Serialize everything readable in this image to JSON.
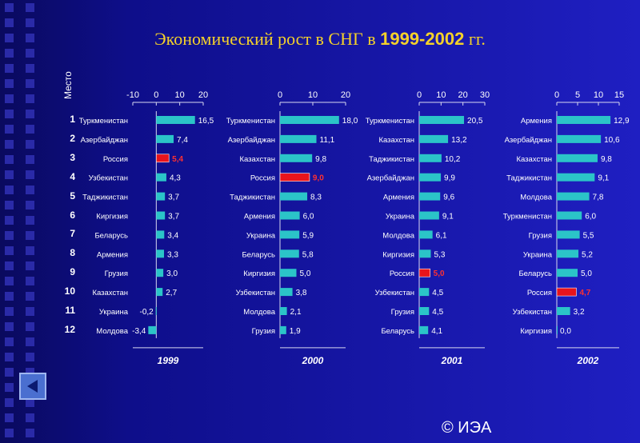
{
  "slide": {
    "title_prefix": "Экономический рост в СНГ в ",
    "title_years": "1999-2002",
    "title_suffix": " гг.",
    "rank_label": "Место",
    "copyright": "© ИЭА",
    "back_icon": "back-arrow-icon"
  },
  "ranks": [
    "1",
    "2",
    "3",
    "4",
    "5",
    "6",
    "7",
    "8",
    "9",
    "10",
    "11",
    "12"
  ],
  "colors": {
    "bar": "#2bc4c8",
    "highlight": "#e8141c",
    "label": "#ffffff",
    "highlight_label": "#ff3030",
    "title": "#f4d12a"
  },
  "chart_data": [
    {
      "type": "bar",
      "orientation": "horizontal",
      "title": "1999",
      "xlim": [
        -10,
        20
      ],
      "ticks": [
        "-10",
        "0",
        "10",
        "20"
      ],
      "categories": [
        "Туркменистан",
        "Азербайджан",
        "Россия",
        "Узбекистан",
        "Таджикистан",
        "Киргизия",
        "Беларусь",
        "Армения",
        "Грузия",
        "Казахстан",
        "Украина",
        "Молдова"
      ],
      "values": [
        16.5,
        7.4,
        5.4,
        4.3,
        3.7,
        3.7,
        3.4,
        3.3,
        3.0,
        2.7,
        -0.2,
        -3.4
      ],
      "value_labels": [
        "16,5",
        "7,4",
        "5,4",
        "4,3",
        "3,7",
        "3,7",
        "3,4",
        "3,3",
        "3,0",
        "2,7",
        "-0,2",
        "-3,4"
      ],
      "highlight": "Россия"
    },
    {
      "type": "bar",
      "orientation": "horizontal",
      "title": "2000",
      "xlim": [
        0,
        20
      ],
      "ticks": [
        "0",
        "10",
        "20"
      ],
      "categories": [
        "Туркменистан",
        "Азербайджан",
        "Казахстан",
        "Россия",
        "Таджикистан",
        "Армения",
        "Украина",
        "Беларусь",
        "Киргизия",
        "Узбекистан",
        "Молдова",
        "Грузия"
      ],
      "values": [
        18.0,
        11.1,
        9.8,
        9.0,
        8.3,
        6.0,
        5.9,
        5.8,
        5.0,
        3.8,
        2.1,
        1.9
      ],
      "value_labels": [
        "18,0",
        "11,1",
        "9,8",
        "9,0",
        "8,3",
        "6,0",
        "5,9",
        "5,8",
        "5,0",
        "3,8",
        "2,1",
        "1,9"
      ],
      "highlight": "Россия"
    },
    {
      "type": "bar",
      "orientation": "horizontal",
      "title": "2001",
      "xlim": [
        0,
        30
      ],
      "ticks": [
        "0",
        "10",
        "20",
        "30"
      ],
      "categories": [
        "Туркменистан",
        "Казахстан",
        "Таджикистан",
        "Азербайджан",
        "Армения",
        "Украина",
        "Молдова",
        "Киргизия",
        "Россия",
        "Узбекистан",
        "Грузия",
        "Беларусь"
      ],
      "values": [
        20.5,
        13.2,
        10.2,
        9.9,
        9.6,
        9.1,
        6.1,
        5.3,
        5.0,
        4.5,
        4.5,
        4.1
      ],
      "value_labels": [
        "20,5",
        "13,2",
        "10,2",
        "9,9",
        "9,6",
        "9,1",
        "6,1",
        "5,3",
        "5,0",
        "4,5",
        "4,5",
        "4,1"
      ],
      "highlight": "Россия"
    },
    {
      "type": "bar",
      "orientation": "horizontal",
      "title": "2002",
      "xlim": [
        0,
        15
      ],
      "ticks": [
        "0",
        "5",
        "10",
        "15"
      ],
      "categories": [
        "Армения",
        "Азербайджан",
        "Казахстан",
        "Таджикистан",
        "Молдова",
        "Туркменистан",
        "Грузия",
        "Украина",
        "Беларусь",
        "Россия",
        "Узбекистан",
        "Киргизия"
      ],
      "values": [
        12.9,
        10.6,
        9.8,
        9.1,
        7.8,
        6.0,
        5.5,
        5.2,
        5.0,
        4.7,
        3.2,
        0.0
      ],
      "value_labels": [
        "12,9",
        "10,6",
        "9,8",
        "9,1",
        "7,8",
        "6,0",
        "5,5",
        "5,2",
        "5,0",
        "4,7",
        "3,2",
        "0,0"
      ],
      "highlight": "Россия"
    }
  ]
}
